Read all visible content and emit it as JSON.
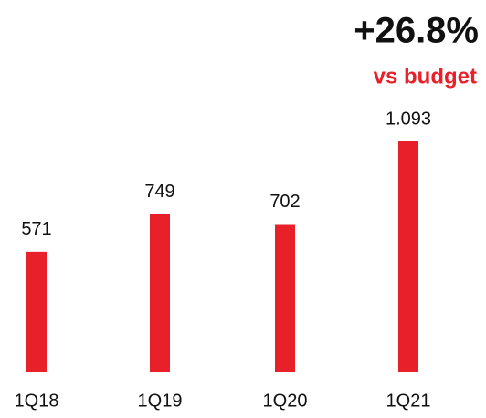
{
  "chart_data": {
    "type": "bar",
    "categories": [
      "1Q18",
      "1Q19",
      "1Q20",
      "1Q21"
    ],
    "values": [
      571,
      749,
      702,
      1093
    ],
    "value_labels": [
      "571",
      "749",
      "702",
      "1.093"
    ],
    "color": "#e8202a",
    "annotations": [
      "+26.8%",
      "vs budget"
    ]
  }
}
